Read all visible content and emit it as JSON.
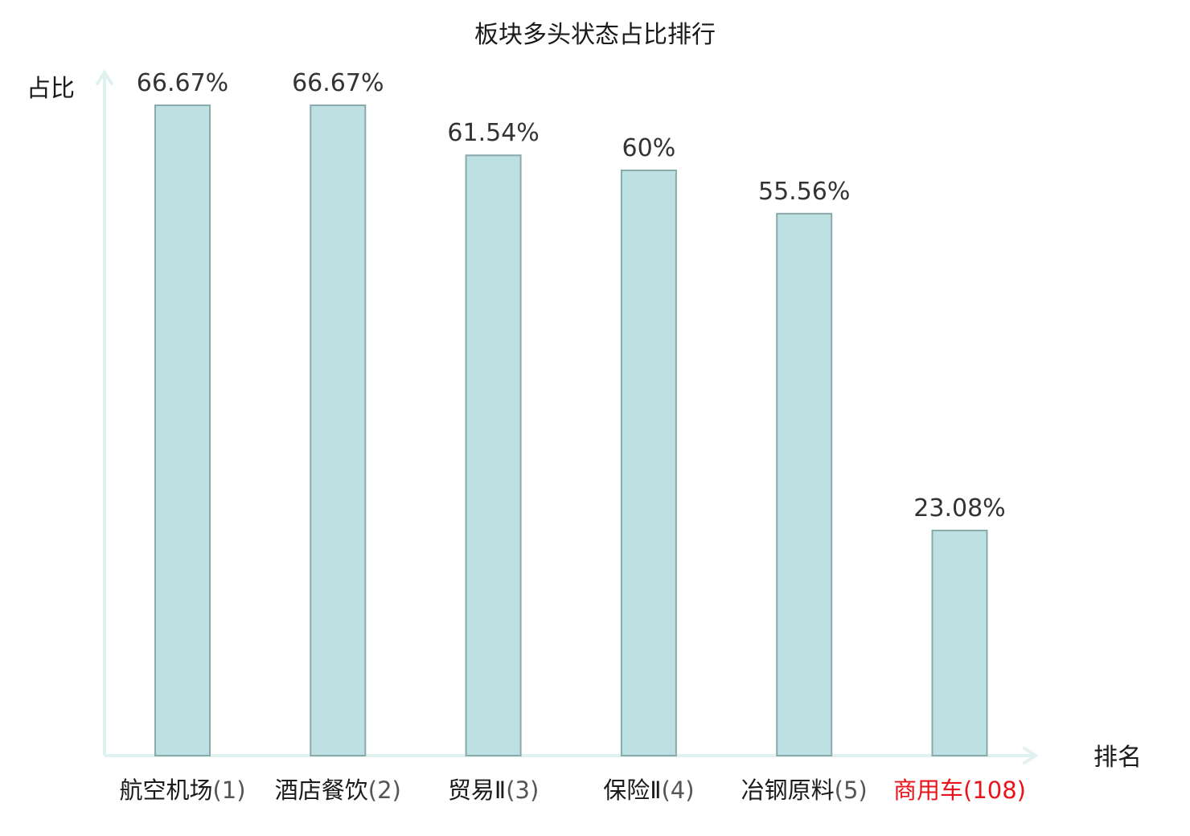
{
  "chart_data": {
    "type": "bar",
    "title": "板块多头状态占比排行",
    "ylabel": "占比",
    "xlabel": "排名",
    "ylim": [
      0,
      70
    ],
    "grid": false,
    "legend": "none",
    "categories": [
      {
        "name": "航空机场",
        "rank": "(1)",
        "highlight": false
      },
      {
        "name": "酒店餐饮",
        "rank": "(2)",
        "highlight": false
      },
      {
        "name": "贸易Ⅱ",
        "rank": "(3)",
        "highlight": false
      },
      {
        "name": "保险Ⅱ",
        "rank": "(4)",
        "highlight": false
      },
      {
        "name": "冶钢原料",
        "rank": "(5)",
        "highlight": false
      },
      {
        "name": "商用车",
        "rank": "(108)",
        "highlight": true
      }
    ],
    "values": [
      66.67,
      66.67,
      61.54,
      60,
      55.56,
      23.08
    ],
    "labels": [
      "66.67%",
      "66.67%",
      "61.54%",
      "60%",
      "55.56%",
      "23.08%"
    ],
    "colors": {
      "bar_fill": "#bde0e3",
      "bar_stroke": "#8aa9aa",
      "axis": "#dff2ef",
      "highlight": "#e8141b",
      "rank_text": "#555555",
      "text": "#1a1a1a"
    }
  }
}
